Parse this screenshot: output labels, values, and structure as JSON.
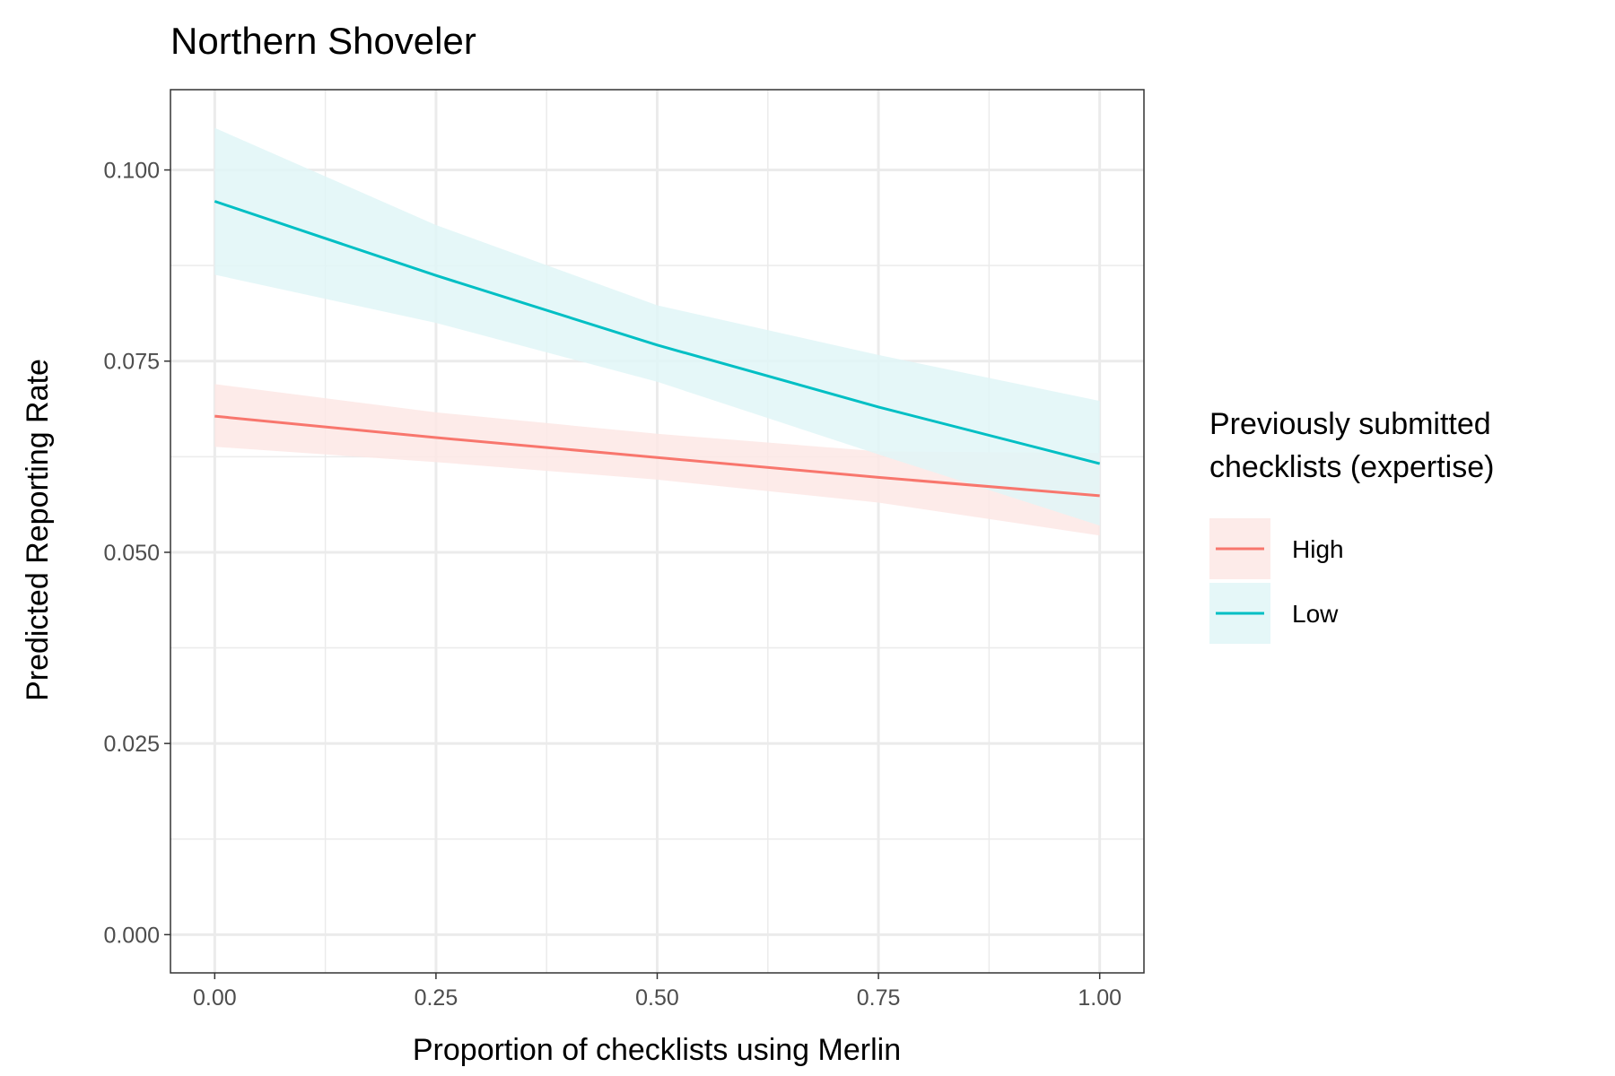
{
  "chart_data": {
    "type": "line",
    "title": "Northern Shoveler",
    "xlabel": "Proportion of checklists using Merlin",
    "ylabel": "Predicted Reporting Rate",
    "xlim": [
      -0.05,
      1.05
    ],
    "ylim": [
      -0.005,
      0.1105
    ],
    "x_ticks": [
      0,
      0.25,
      0.5,
      0.75,
      1.0
    ],
    "x_tick_labels": [
      "0.00",
      "0.25",
      "0.50",
      "0.75",
      "1.00"
    ],
    "y_ticks": [
      0,
      0.025,
      0.05,
      0.075,
      0.1
    ],
    "y_tick_labels": [
      "0.000",
      "0.025",
      "0.050",
      "0.075",
      "0.100"
    ],
    "grid": true,
    "legend": {
      "title_lines": [
        "Previously submitted",
        "checklists (expertise)"
      ],
      "placement": "right"
    },
    "x": [
      0,
      0.25,
      0.5,
      0.75,
      1.0
    ],
    "series": [
      {
        "name": "High",
        "color": "#F8766D",
        "fill": "#FDE7E5",
        "values": [
          0.0678,
          0.065,
          0.0624,
          0.0598,
          0.0574
        ],
        "lower": [
          0.0638,
          0.0618,
          0.0595,
          0.0565,
          0.0522
        ],
        "upper": [
          0.072,
          0.0683,
          0.0655,
          0.0632,
          0.063
        ]
      },
      {
        "name": "Low",
        "color": "#00BFC4",
        "fill": "#E0F6F7",
        "values": [
          0.0959,
          0.0862,
          0.0771,
          0.069,
          0.0616
        ],
        "lower": [
          0.0863,
          0.08,
          0.0723,
          0.0628,
          0.0535
        ],
        "upper": [
          0.1055,
          0.0928,
          0.0823,
          0.0758,
          0.0698
        ]
      }
    ]
  }
}
